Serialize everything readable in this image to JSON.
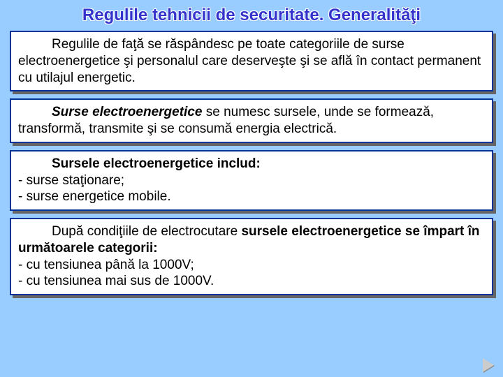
{
  "colors": {
    "slide_background": "#99ccff",
    "title_color": "#3333cc",
    "box_border": "#003399",
    "box_background": "#ffffff",
    "box_shadow": "#666666",
    "text_color": "#000000",
    "arrow_color": "#888888"
  },
  "typography": {
    "title_fontsize": 24,
    "title_weight": "bold",
    "body_fontsize": 19,
    "font_family": "Arial"
  },
  "title": "Regulile tehnicii de securitate. Generalităţi",
  "boxes": [
    {
      "runs": [
        {
          "text": "Regulile de faţă se răspândesc pe toate categoriile de surse electroenergetice şi personalul care deserveşte şi se află în contact permanent cu utilajul energetic.",
          "style": "normal",
          "indent": true
        }
      ]
    },
    {
      "runs": [
        {
          "text": "Surse electroenergetice",
          "style": "bold-italic",
          "indent": true
        },
        {
          "text": " se numesc sursele, unde se formează, transformă, transmite şi se consumă energia electrică.",
          "style": "normal"
        }
      ]
    },
    {
      "runs": [
        {
          "text": "Sursele electroenergetice includ:",
          "style": "bold",
          "indent": true
        },
        {
          "text": "\n- surse staţionare;",
          "style": "normal"
        },
        {
          "text": "\n- surse energetice mobile.",
          "style": "normal"
        }
      ]
    },
    {
      "runs": [
        {
          "text": "După condiţiile de electrocutare ",
          "style": "normal",
          "indent": true
        },
        {
          "text": "sursele electroenergetice se împart în următoarele categorii:",
          "style": "bold"
        },
        {
          "text": "\n-  cu tensiunea până la 1000V;",
          "style": "normal"
        },
        {
          "text": "\n-  cu tensiunea mai sus de 1000V.",
          "style": "normal"
        }
      ]
    }
  ]
}
